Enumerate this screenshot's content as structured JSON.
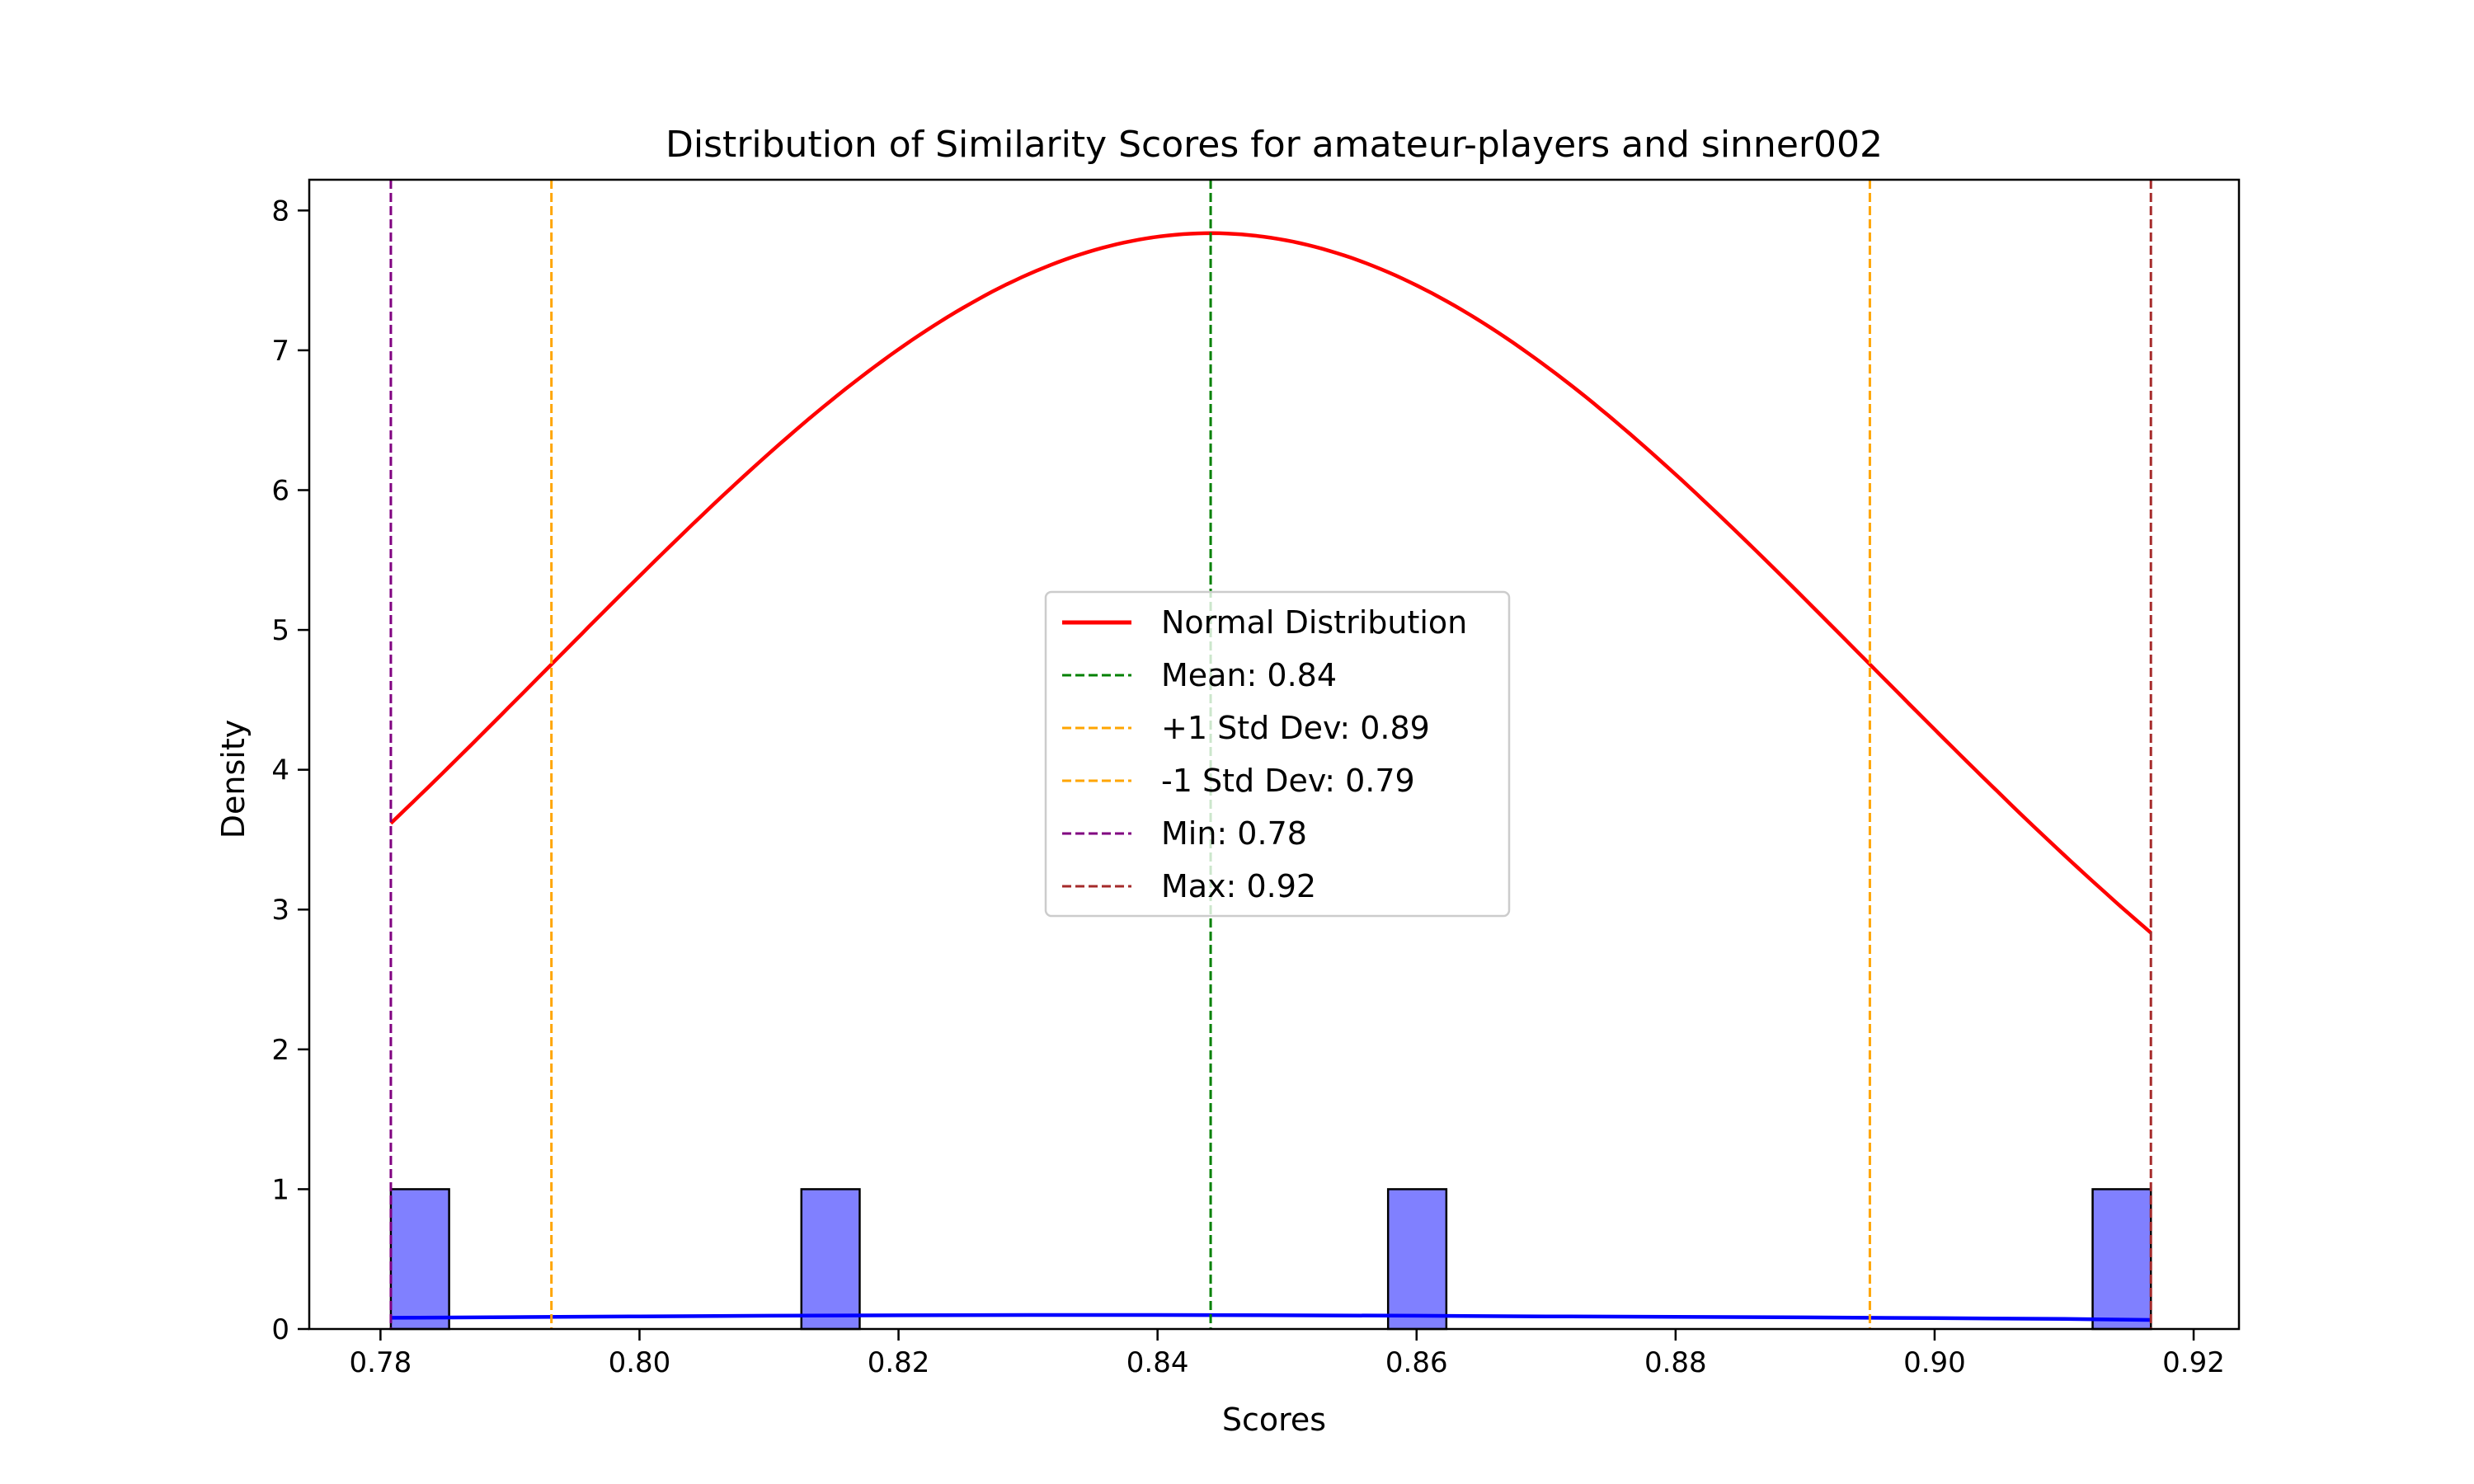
{
  "chart_data": {
    "type": "histogram",
    "title": "Distribution of Similarity Scores for amateur-players and sinner002",
    "xlabel": "Scores",
    "ylabel": "Density",
    "xlim": [
      0.7745,
      0.9235
    ],
    "ylim": [
      0,
      8.22
    ],
    "xticks": [
      0.78,
      0.8,
      0.82,
      0.84,
      0.86,
      0.88,
      0.9,
      0.92
    ],
    "xtick_labels": [
      "0.78",
      "0.80",
      "0.82",
      "0.84",
      "0.86",
      "0.88",
      "0.90",
      "0.92"
    ],
    "yticks": [
      0,
      1,
      2,
      3,
      4,
      5,
      6,
      7,
      8
    ],
    "ytick_labels": [
      "0",
      "1",
      "2",
      "3",
      "4",
      "5",
      "6",
      "7",
      "8"
    ],
    "grid": false,
    "legend_position": "center",
    "histogram": {
      "color": "#8080ff",
      "edge_color": "#000000",
      "bins": [
        {
          "start": 0.7808,
          "end": 0.7853,
          "value": 1
        },
        {
          "start": 0.8125,
          "end": 0.817,
          "value": 1
        },
        {
          "start": 0.8578,
          "end": 0.8623,
          "value": 1
        },
        {
          "start": 0.9122,
          "end": 0.9167,
          "value": 1
        }
      ]
    },
    "kde_line": {
      "color": "#0000ff",
      "x": [
        0.7808,
        0.79,
        0.8,
        0.81,
        0.82,
        0.83,
        0.84,
        0.85,
        0.86,
        0.87,
        0.88,
        0.89,
        0.9,
        0.91,
        0.9167
      ],
      "y": [
        0.08,
        0.085,
        0.09,
        0.095,
        0.098,
        0.1,
        0.1,
        0.098,
        0.095,
        0.09,
        0.087,
        0.083,
        0.078,
        0.072,
        0.065
      ]
    },
    "normal_curve": {
      "name": "Normal Distribution",
      "color": "#ff0000",
      "mean": 0.8441,
      "std": 0.0509,
      "x_range": [
        0.7808,
        0.9167
      ]
    },
    "vlines": [
      {
        "name": "Mean: 0.84",
        "x": 0.8441,
        "color": "#008000"
      },
      {
        "name": "+1 Std Dev: 0.89",
        "x": 0.895,
        "color": "#ffa500"
      },
      {
        "name": "-1 Std Dev: 0.79",
        "x": 0.7932,
        "color": "#ffa500"
      },
      {
        "name": "Min: 0.78",
        "x": 0.7808,
        "color": "#800080"
      },
      {
        "name": "Max: 0.92",
        "x": 0.9167,
        "color": "#a52a2a"
      }
    ]
  }
}
